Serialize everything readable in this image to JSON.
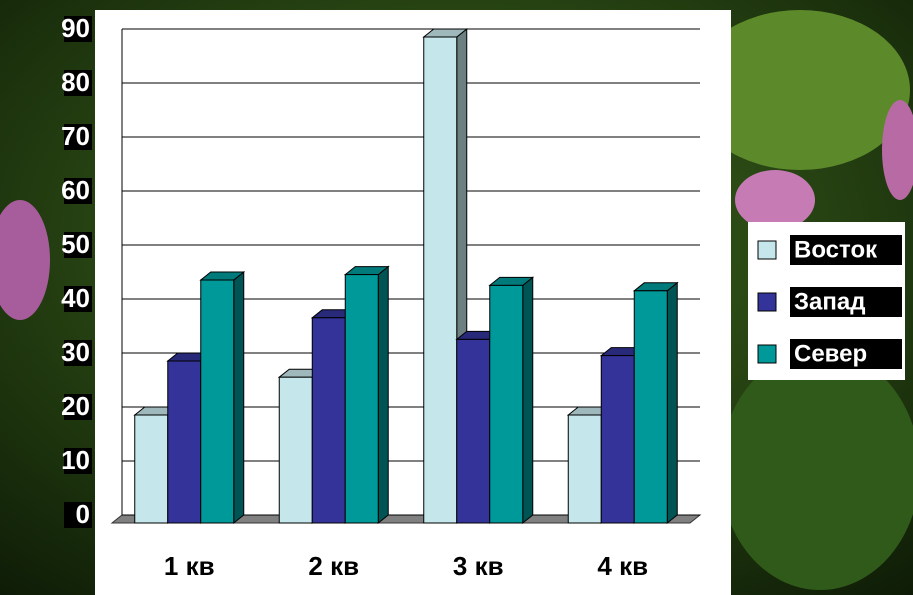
{
  "chart_data": {
    "type": "bar",
    "categories": [
      "1 кв",
      "2 кв",
      "3 кв",
      "4 кв"
    ],
    "series": [
      {
        "name": "Восток",
        "color": "#c5e6ea",
        "values": [
          20,
          27,
          90,
          20
        ]
      },
      {
        "name": "Запад",
        "color": "#333399",
        "values": [
          30,
          38,
          34,
          31
        ]
      },
      {
        "name": "Север",
        "color": "#009999",
        "values": [
          45,
          46,
          44,
          43
        ]
      }
    ],
    "ylim": [
      0,
      90
    ],
    "yticks": [
      0,
      10,
      20,
      30,
      40,
      50,
      60,
      70,
      80,
      90
    ],
    "grid": true,
    "legend": "right"
  }
}
